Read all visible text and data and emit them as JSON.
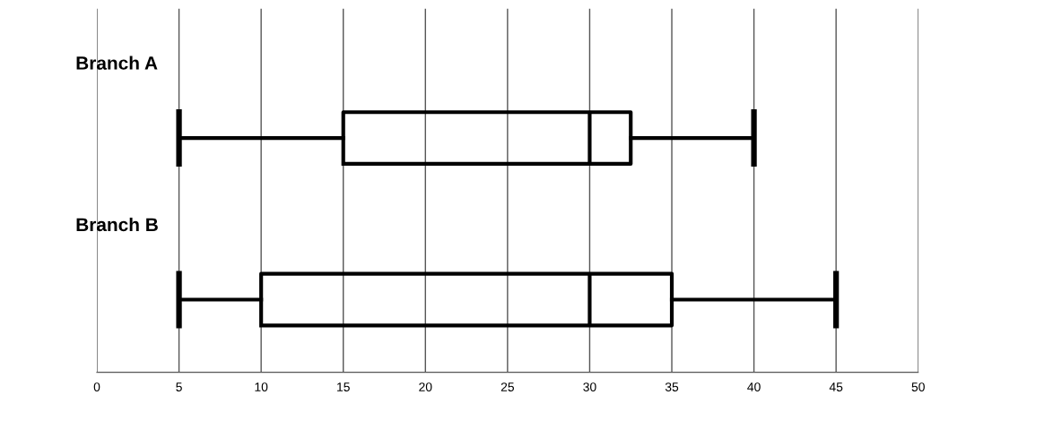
{
  "chart_data": {
    "type": "box",
    "orientation": "horizontal",
    "categories": [
      "Branch A",
      "Branch B"
    ],
    "boxes": [
      {
        "low": 5,
        "q1": 15,
        "median": 30,
        "q3": 32.5,
        "high": 40
      },
      {
        "low": 5,
        "q1": 10,
        "median": 30,
        "q3": 35,
        "high": 45
      }
    ],
    "xlim": [
      0,
      50
    ],
    "xticks": [
      0,
      5,
      10,
      15,
      20,
      25,
      30,
      35,
      40,
      45,
      50
    ],
    "grid": "x"
  }
}
